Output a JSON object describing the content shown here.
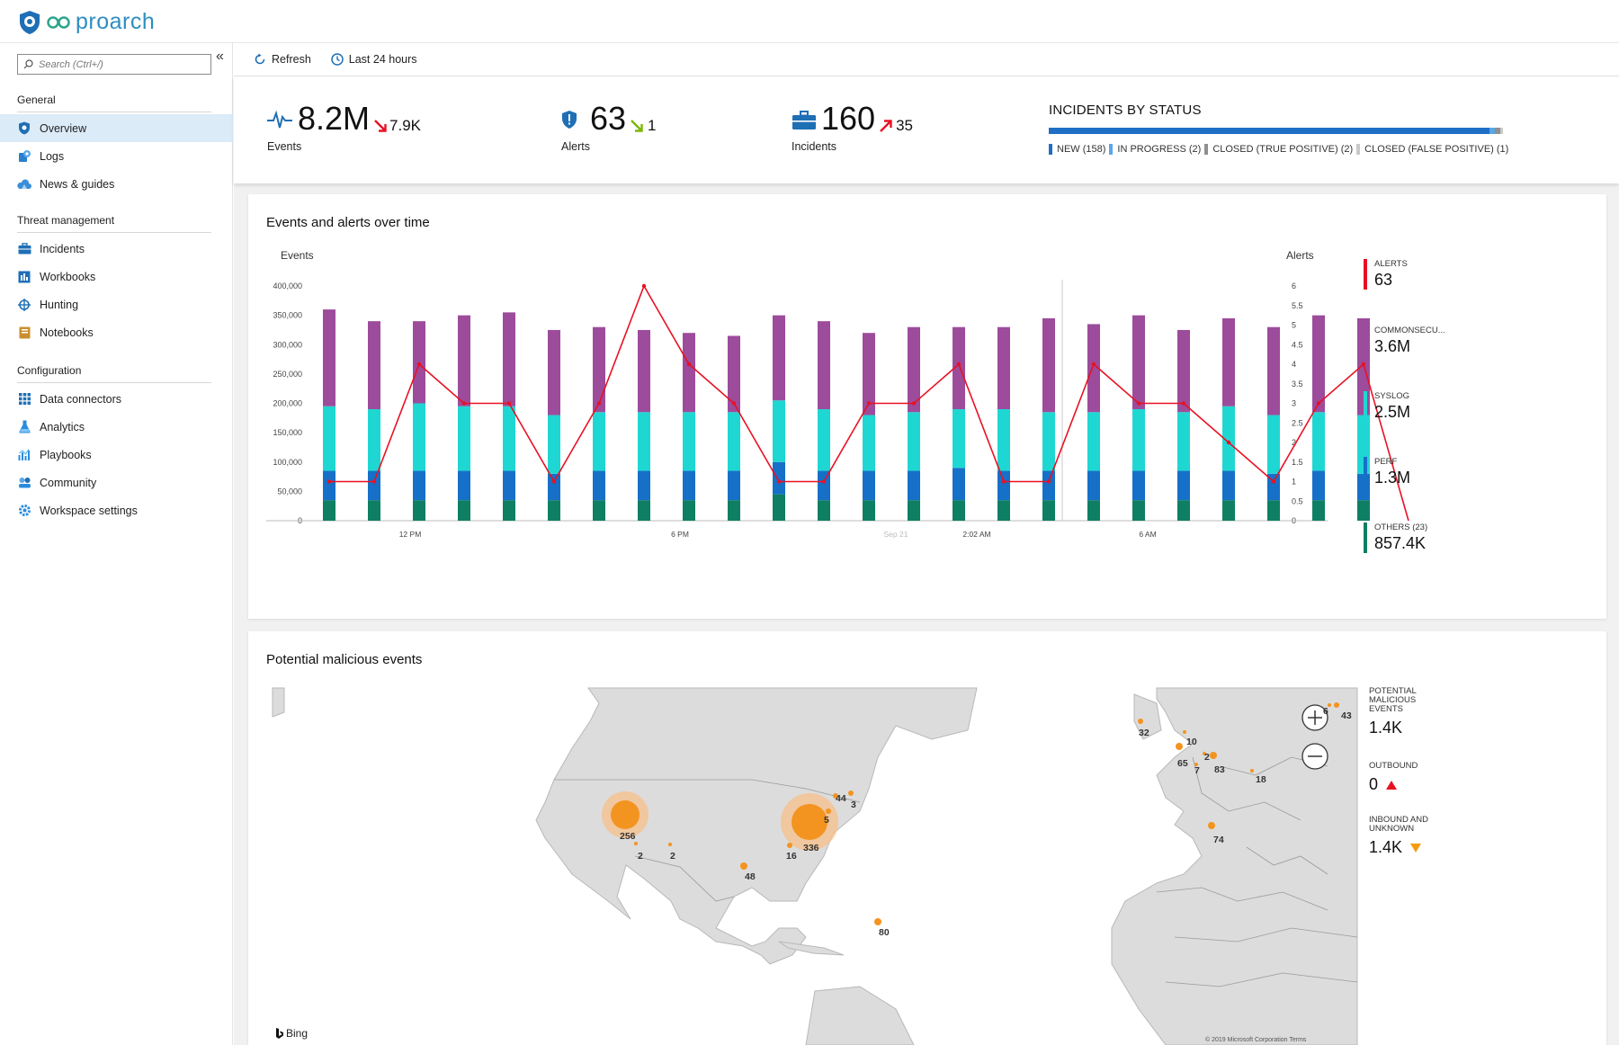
{
  "brand": {
    "name": "proarch"
  },
  "sidebar": {
    "search_placeholder": "Search (Ctrl+/)",
    "collapse_glyph": "«",
    "sections": [
      {
        "title": "General",
        "items": [
          {
            "label": "Overview",
            "icon": "shield-icon",
            "active": true
          },
          {
            "label": "Logs",
            "icon": "logs-icon"
          },
          {
            "label": "News & guides",
            "icon": "cloud-icon"
          }
        ]
      },
      {
        "title": "Threat management",
        "items": [
          {
            "label": "Incidents",
            "icon": "briefcase-icon"
          },
          {
            "label": "Workbooks",
            "icon": "workbook-icon"
          },
          {
            "label": "Hunting",
            "icon": "crosshair-icon"
          },
          {
            "label": "Notebooks",
            "icon": "notebook-icon"
          }
        ]
      },
      {
        "title": "Configuration",
        "items": [
          {
            "label": "Data connectors",
            "icon": "grid-icon"
          },
          {
            "label": "Analytics",
            "icon": "flask-icon"
          },
          {
            "label": "Playbooks",
            "icon": "chart-icon"
          },
          {
            "label": "Community",
            "icon": "community-icon"
          },
          {
            "label": "Workspace settings",
            "icon": "gear-icon"
          }
        ]
      }
    ]
  },
  "toolbar": {
    "refresh": "Refresh",
    "timerange": "Last 24 hours"
  },
  "kpis": {
    "events": {
      "value": "8.2M",
      "delta": "7.9K",
      "label": "Events"
    },
    "alerts": {
      "value": "63",
      "delta": "1",
      "label": "Alerts"
    },
    "incidents": {
      "value": "160",
      "delta": "35",
      "label": "Incidents"
    }
  },
  "incidents_status": {
    "title": "INCIDENTS BY STATUS",
    "segments": [
      {
        "label": "NEW (158)",
        "count": 158,
        "color": "#1f6fc5"
      },
      {
        "label": "IN PROGRESS (2)",
        "count": 2,
        "color": "#5aa6e6"
      },
      {
        "label": "CLOSED (TRUE POSITIVE) (2)",
        "count": 2,
        "color": "#8f8f8f"
      },
      {
        "label": "CLOSED (FALSE POSITIVE) (1)",
        "count": 1,
        "color": "#c9c9c9"
      }
    ]
  },
  "events_card": {
    "title": "Events and alerts over time"
  },
  "chart_data": {
    "type": "bar",
    "left_axis_label": "Events",
    "right_axis_label": "Alerts",
    "y_ticks": [
      "0",
      "50,000",
      "100,000",
      "150,000",
      "200,000",
      "250,000",
      "300,000",
      "350,000",
      "400,000"
    ],
    "y2_ticks": [
      "0",
      "0.5",
      "1",
      "1.5",
      "2",
      "2.5",
      "3",
      "3.5",
      "4",
      "4.5",
      "5",
      "5.5",
      "6"
    ],
    "ylim": [
      0,
      400000
    ],
    "y2lim": [
      0,
      6
    ],
    "x_labels": [
      "12 PM",
      "6 PM",
      "Sep 21",
      "2:02 AM",
      "6 AM"
    ],
    "series": [
      {
        "name": "OTHERS (23)",
        "color": "#0e7f63",
        "values": [
          35000,
          35000,
          35000,
          35000,
          35000,
          35000,
          35000,
          35000,
          35000,
          35000,
          45000,
          35000,
          35000,
          35000,
          35000,
          35000,
          35000,
          35000,
          35000,
          35000,
          35000,
          35000,
          35000,
          35000
        ]
      },
      {
        "name": "PERF",
        "color": "#1670c8",
        "values": [
          50000,
          50000,
          50000,
          50000,
          50000,
          45000,
          50000,
          50000,
          50000,
          50000,
          55000,
          50000,
          50000,
          50000,
          55000,
          50000,
          50000,
          50000,
          50000,
          50000,
          50000,
          45000,
          50000,
          45000
        ]
      },
      {
        "name": "SYSLOG",
        "color": "#1fd7d2",
        "values": [
          110000,
          105000,
          115000,
          110000,
          110000,
          100000,
          100000,
          100000,
          100000,
          100000,
          105000,
          105000,
          95000,
          100000,
          100000,
          105000,
          100000,
          100000,
          105000,
          100000,
          110000,
          100000,
          100000,
          100000
        ]
      },
      {
        "name": "COMMONSECU...",
        "color": "#9c4c9b",
        "values": [
          165000,
          150000,
          140000,
          155000,
          160000,
          145000,
          145000,
          140000,
          135000,
          130000,
          145000,
          150000,
          140000,
          145000,
          140000,
          140000,
          160000,
          150000,
          160000,
          140000,
          150000,
          150000,
          165000,
          165000
        ]
      }
    ],
    "alerts_line": {
      "name": "ALERTS",
      "color": "#e81123",
      "values": [
        1,
        1,
        4,
        3,
        3,
        1,
        3,
        6,
        4,
        3,
        1,
        1,
        3,
        3,
        4,
        1,
        1,
        4,
        3,
        3,
        2,
        1,
        3,
        4,
        0
      ]
    }
  },
  "legend": [
    {
      "name": "ALERTS",
      "value": "63",
      "color": "#e81123"
    },
    {
      "name": "COMMONSECU...",
      "value": "3.6M",
      "color": "#9c4c9b"
    },
    {
      "name": "SYSLOG",
      "value": "2.5M",
      "color": "#1fd7d2"
    },
    {
      "name": "PERF",
      "value": "1.3M",
      "color": "#1670c8"
    },
    {
      "name": "OTHERS (23)",
      "value": "857.4K",
      "color": "#0e7f63"
    }
  ],
  "map_card": {
    "title": "Potential malicious events",
    "bing": "Bing",
    "copyright": "© 2019 Microsoft Corporation Terms",
    "points": [
      "256",
      "336",
      "44",
      "3",
      "5",
      "16",
      "2",
      "2",
      "48",
      "80",
      "32",
      "10",
      "65",
      "7",
      "2",
      "83",
      "18",
      "74",
      "6",
      "43"
    ],
    "side": {
      "potential_label": "POTENTIAL MALICIOUS EVENTS",
      "potential_value": "1.4K",
      "outbound_label": "OUTBOUND",
      "outbound_value": "0",
      "inbound_label": "INBOUND AND UNKNOWN",
      "inbound_value": "1.4K"
    }
  }
}
